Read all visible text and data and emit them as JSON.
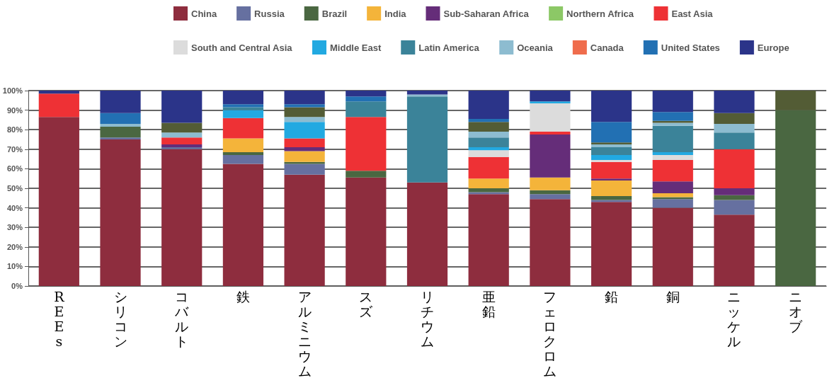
{
  "chart_data": {
    "type": "bar",
    "stacked": true,
    "categories": [
      "REEs",
      "シリコン",
      "コバルト",
      "鉄",
      "アルミニウム",
      "スズ",
      "リチウム",
      "亜鉛",
      "フェロクロム",
      "鉛",
      "銅",
      "ニッケル",
      "ニオブ"
    ],
    "ylim": [
      0,
      100
    ],
    "yticks": [
      {
        "value": 0,
        "label": "0%"
      },
      {
        "value": 10,
        "label": "10%"
      },
      {
        "value": 20,
        "label": "20%"
      },
      {
        "value": 30,
        "label": "30%"
      },
      {
        "value": 40,
        "label": "40%"
      },
      {
        "value": 50,
        "label": "50%"
      },
      {
        "value": 60,
        "label": "60%"
      },
      {
        "value": 70,
        "label": "70%"
      },
      {
        "value": 80,
        "label": "80%"
      },
      {
        "value": 90,
        "label": "90%"
      },
      {
        "value": 100,
        "label": "100%"
      }
    ],
    "grid": "y",
    "legend": "top",
    "series": [
      {
        "name": "China",
        "color": "#8e2d3e",
        "values": [
          86.5,
          75,
          70,
          62.5,
          57,
          55.5,
          53,
          47,
          44.5,
          43,
          40,
          36.5,
          null
        ]
      },
      {
        "name": "Russia",
        "color": "#6670a0",
        "values": [
          null,
          1,
          1,
          4.5,
          5.5,
          null,
          null,
          1,
          2.5,
          1,
          4.5,
          7.5,
          null
        ]
      },
      {
        "name": "Brazil",
        "color": "#4a6741",
        "values": [
          null,
          5.5,
          null,
          1.5,
          1,
          3.5,
          null,
          2,
          2,
          2,
          1,
          2.5,
          90
        ]
      },
      {
        "name": "India",
        "color": "#f4b43a",
        "values": [
          null,
          null,
          null,
          7,
          5.5,
          null,
          null,
          5,
          6.5,
          8,
          2,
          null,
          null
        ]
      },
      {
        "name": "Sub-Saharan Africa",
        "color": "#652d79",
        "values": [
          null,
          null,
          1.5,
          null,
          2,
          null,
          null,
          null,
          22,
          1,
          6,
          3.5,
          null
        ]
      },
      {
        "name": "Northern Africa",
        "color": "#8cc866",
        "values": [
          null,
          null,
          null,
          null,
          null,
          null,
          null,
          null,
          null,
          null,
          null,
          null,
          null
        ]
      },
      {
        "name": "East Asia",
        "color": "#ee3135",
        "values": [
          12,
          null,
          3.5,
          10.5,
          4.5,
          27.5,
          null,
          11,
          1.5,
          8.5,
          11,
          20,
          null
        ]
      },
      {
        "name": "South and Central Asia",
        "color": "#dcdcdc",
        "values": [
          null,
          null,
          null,
          null,
          null,
          null,
          null,
          3.5,
          14.5,
          1,
          2.5,
          null,
          null
        ]
      },
      {
        "name": "Middle East",
        "color": "#22a9e1",
        "values": [
          null,
          null,
          null,
          4,
          8.5,
          null,
          null,
          1.5,
          1,
          2.5,
          1.5,
          null,
          null
        ]
      },
      {
        "name": "Latin America",
        "color": "#3b8399",
        "values": [
          null,
          null,
          null,
          1.5,
          null,
          8,
          44,
          5,
          null,
          4,
          13.5,
          8.5,
          null
        ]
      },
      {
        "name": "Oceania",
        "color": "#8dbcd0",
        "values": [
          null,
          1.5,
          2.5,
          null,
          2.5,
          null,
          1,
          3,
          null,
          1.5,
          1.5,
          4.5,
          null
        ]
      },
      {
        "name": "Canada",
        "color": "#ef6c4c",
        "values": [
          null,
          null,
          null,
          null,
          null,
          null,
          null,
          null,
          null,
          null,
          null,
          null,
          null
        ]
      },
      {
        "color": "#535c35",
        "values": [
          null,
          null,
          5,
          null,
          5,
          null,
          null,
          5,
          null,
          1,
          1,
          5.5,
          10
        ]
      },
      {
        "name": "United States",
        "color": "#2270b3",
        "values": [
          null,
          5.5,
          null,
          1.5,
          1.5,
          2.5,
          null,
          1.5,
          null,
          10.5,
          4.5,
          null,
          null
        ]
      },
      {
        "name": "Europe",
        "color": "#2b3489",
        "values": [
          1.5,
          11.5,
          16.5,
          7,
          7,
          3,
          2,
          14.5,
          5.5,
          16,
          11,
          11.5,
          null
        ]
      }
    ]
  }
}
